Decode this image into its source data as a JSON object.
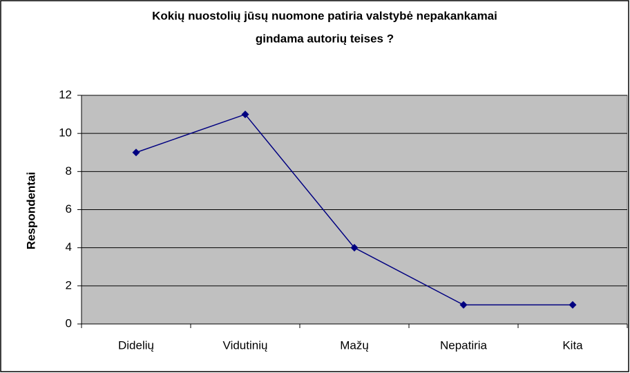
{
  "chart_data": {
    "type": "line",
    "title": [
      "Kokių nuostolių jūsų nuomone patiria valstybė nepakankamai",
      "gindama autorių teises ?"
    ],
    "ylabel": "Respondentai",
    "categories": [
      "Didelių",
      "Vidutinių",
      "Mažų",
      "Nepatiria",
      "Kita"
    ],
    "values": [
      9,
      11,
      4,
      1,
      1
    ],
    "color": "#000080",
    "ylim": [
      0,
      12
    ],
    "yticks": [
      0,
      2,
      4,
      6,
      8,
      10,
      12
    ],
    "grid": true
  }
}
